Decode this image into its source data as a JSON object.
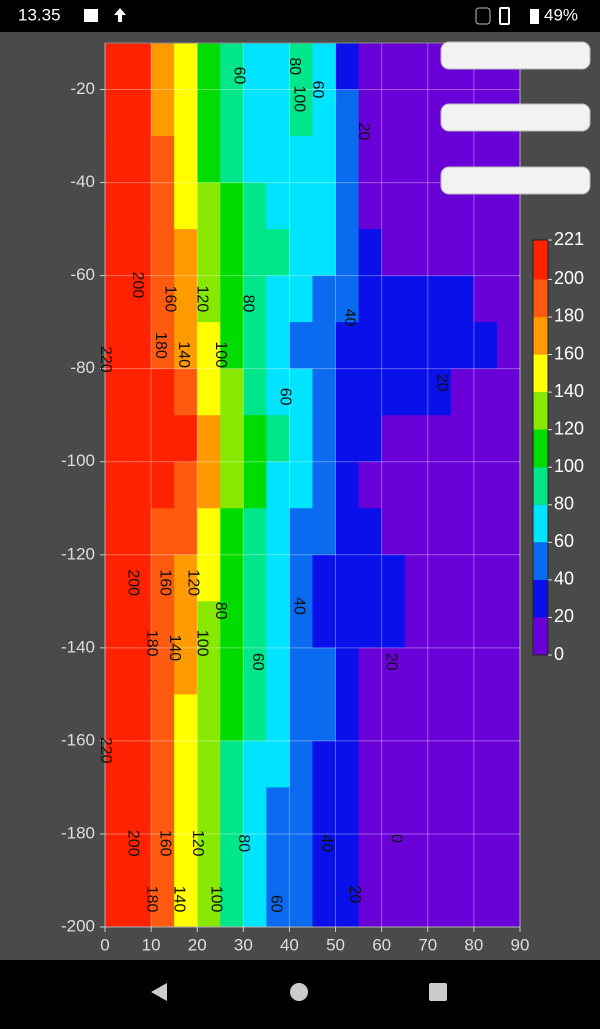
{
  "status": {
    "time": "13.35",
    "battery": "49%"
  },
  "chart_data": {
    "type": "contour",
    "x": [
      2.5,
      7.5,
      12.5,
      17.5,
      22.5,
      27.5,
      32.5,
      37.5,
      42.5,
      47.5,
      52.5,
      57.5,
      62.5,
      67.5,
      72.5,
      77.5,
      82.5,
      87.5
    ],
    "y": [
      -15,
      -25,
      -35,
      -45,
      -55,
      -65,
      -75,
      -85,
      -95,
      -105,
      -115,
      -125,
      -135,
      -145,
      -155,
      -165,
      -175,
      -185,
      -195
    ],
    "z": [
      [
        221,
        205,
        178,
        145,
        112,
        90,
        70,
        60,
        85,
        60,
        38,
        14,
        8,
        8,
        8,
        8,
        8,
        8
      ],
      [
        221,
        205,
        178,
        145,
        112,
        90,
        70,
        65,
        95,
        70,
        40,
        15,
        8,
        8,
        8,
        8,
        8,
        8
      ],
      [
        221,
        205,
        180,
        150,
        118,
        95,
        75,
        70,
        72,
        65,
        42,
        16,
        9,
        8,
        8,
        8,
        8,
        8
      ],
      [
        221,
        205,
        182,
        155,
        125,
        105,
        85,
        70,
        70,
        65,
        45,
        18,
        9,
        8,
        8,
        8,
        8,
        8
      ],
      [
        221,
        206,
        185,
        160,
        130,
        110,
        95,
        80,
        70,
        60,
        45,
        20,
        10,
        8,
        8,
        8,
        8,
        8
      ],
      [
        221,
        208,
        190,
        165,
        135,
        112,
        92,
        75,
        60,
        50,
        40,
        32,
        28,
        26,
        24,
        22,
        18,
        10
      ],
      [
        221,
        210,
        195,
        170,
        140,
        115,
        90,
        70,
        58,
        48,
        38,
        32,
        30,
        28,
        26,
        24,
        20,
        10
      ],
      [
        221,
        212,
        200,
        180,
        150,
        120,
        95,
        75,
        60,
        50,
        38,
        30,
        25,
        22,
        20,
        12,
        9,
        8
      ],
      [
        221,
        216,
        212,
        200,
        170,
        135,
        102,
        80,
        64,
        48,
        35,
        20,
        12,
        9,
        8,
        8,
        8,
        8
      ],
      [
        221,
        215,
        210,
        195,
        165,
        130,
        100,
        78,
        62,
        45,
        33,
        18,
        10,
        8,
        8,
        8,
        8,
        8
      ],
      [
        221,
        208,
        198,
        180,
        150,
        118,
        92,
        70,
        55,
        40,
        32,
        22,
        12,
        9,
        8,
        8,
        8,
        8
      ],
      [
        221,
        205,
        192,
        170,
        140,
        110,
        88,
        66,
        45,
        35,
        30,
        28,
        25,
        18,
        10,
        8,
        8,
        8
      ],
      [
        221,
        205,
        190,
        165,
        135,
        105,
        85,
        65,
        48,
        38,
        30,
        25,
        22,
        15,
        9,
        8,
        8,
        8
      ],
      [
        221,
        203,
        187,
        160,
        130,
        102,
        82,
        64,
        52,
        42,
        32,
        15,
        9,
        8,
        8,
        8,
        8,
        8
      ],
      [
        221,
        202,
        185,
        158,
        128,
        100,
        80,
        62,
        50,
        40,
        30,
        14,
        8,
        8,
        8,
        8,
        8,
        8
      ],
      [
        221,
        200,
        182,
        155,
        125,
        98,
        78,
        60,
        47,
        38,
        28,
        13,
        8,
        8,
        8,
        8,
        8,
        8
      ],
      [
        221,
        200,
        180,
        150,
        120,
        95,
        75,
        58,
        45,
        35,
        25,
        12,
        8,
        6,
        8,
        8,
        8,
        8
      ],
      [
        221,
        200,
        180,
        150,
        120,
        95,
        75,
        58,
        45,
        35,
        25,
        12,
        6,
        4,
        6,
        8,
        8,
        8
      ],
      [
        221,
        200,
        180,
        150,
        120,
        95,
        75,
        58,
        45,
        35,
        25,
        12,
        5,
        3,
        5,
        8,
        8,
        8
      ]
    ],
    "xlim": [
      0,
      90
    ],
    "ylim": [
      -200,
      -10
    ],
    "xticks": [
      0,
      10,
      20,
      30,
      40,
      50,
      60,
      70,
      80,
      90
    ],
    "yticks": [
      -20,
      -40,
      -60,
      -80,
      -100,
      -120,
      -140,
      -160,
      -180,
      -200
    ],
    "grid": true,
    "levels": [
      0,
      20,
      40,
      60,
      80,
      100,
      120,
      140,
      160,
      180,
      200,
      221
    ],
    "colors": [
      "#6a00d8",
      "#0a10ea",
      "#0a6af0",
      "#00e4ff",
      "#00e68a",
      "#00dc00",
      "#88e800",
      "#ffff00",
      "#ff9a00",
      "#ff5a10",
      "#ff2200"
    ],
    "contour_labels": [
      "200",
      "160",
      "120",
      "180",
      "140",
      "100",
      "80",
      "220",
      "60",
      "40",
      "20",
      "20",
      "60",
      "80",
      "100",
      "60",
      "200",
      "160",
      "120",
      "180",
      "140",
      "100",
      "80",
      "40",
      "60",
      "20",
      "220",
      "200",
      "160",
      "120",
      "80",
      "40",
      "0",
      "180",
      "140",
      "100",
      "60",
      "20"
    ]
  }
}
